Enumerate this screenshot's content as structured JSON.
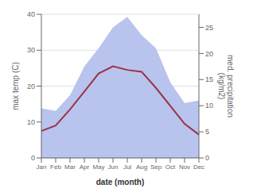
{
  "chart_data": {
    "type": "line",
    "categories": [
      "Jan",
      "Feb",
      "Mar",
      "Apr",
      "May",
      "Jun",
      "Jul",
      "Aug",
      "Sep",
      "Oct",
      "Nov",
      "Dec"
    ],
    "xlabel": "date (month)",
    "ylabel": "max temp (C)",
    "y2label": "med. precipitation\n(kg/m2)",
    "series": [
      {
        "type": "area",
        "axis": "y2",
        "color": "#b8c4ee",
        "values": [
          9.5,
          9.0,
          12.0,
          17.5,
          21.0,
          25.0,
          27.0,
          23.5,
          21.0,
          14.5,
          10.5,
          11.0
        ]
      },
      {
        "type": "line",
        "color": "#993344",
        "values": [
          7.5,
          9.0,
          13.5,
          18.5,
          23.5,
          25.5,
          24.5,
          24.0,
          19.5,
          14.5,
          9.5,
          6.5
        ]
      }
    ],
    "ylim": [
      0,
      40
    ],
    "yticks": [
      0,
      10,
      20,
      30,
      40
    ],
    "y2lim": [
      0,
      27.5
    ],
    "y2ticks": [
      0,
      5,
      10,
      15,
      20,
      25
    ],
    "grid": true
  }
}
